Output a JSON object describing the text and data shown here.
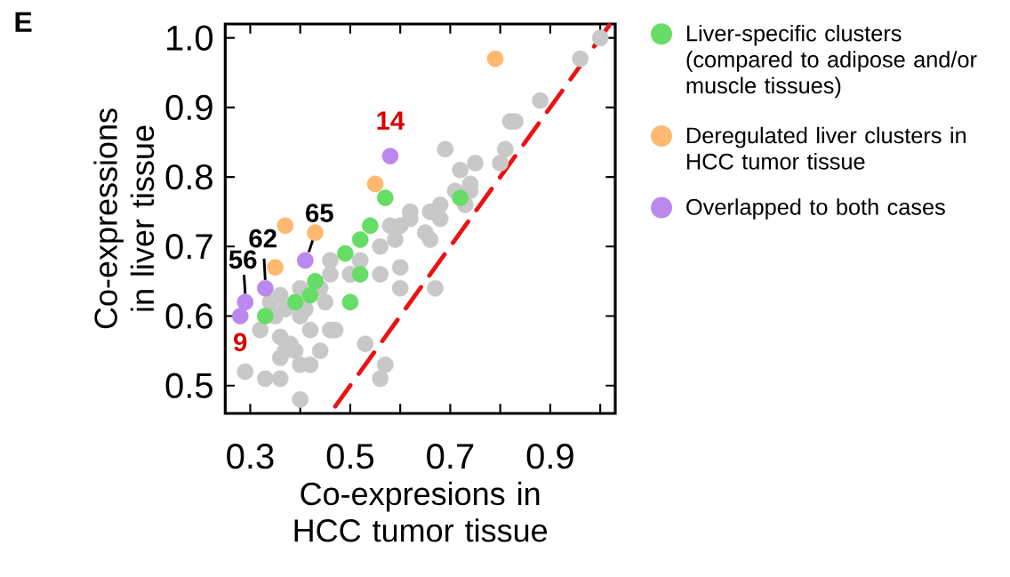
{
  "chart_data": {
    "type": "scatter",
    "xlabel": "Co-expresions in HCC tumor tissue",
    "ylabel": "Co-expressions in liver tissue",
    "xlim": [
      0.25,
      1.03
    ],
    "ylim": [
      0.46,
      1.02
    ],
    "xticks": [
      0.3,
      {
        "value": 0.4,
        "label": null
      },
      0.5,
      {
        "value": 0.6,
        "label": null
      },
      0.7,
      {
        "value": 0.8,
        "label": null
      },
      0.9,
      {
        "value": 1.0,
        "label": null
      }
    ],
    "yticks": [
      0.5,
      0.6,
      0.7,
      0.8,
      0.9,
      {
        "value": 1.0,
        "label": "1.0"
      }
    ],
    "marker": "circle",
    "grid": false,
    "legend": "right",
    "series": [
      {
        "color": "#c8c8c8",
        "x": [
          1.0,
          0.96,
          0.88,
          0.82,
          0.83,
          0.69,
          0.81,
          0.8,
          0.72,
          0.75,
          0.74,
          0.74,
          0.73,
          0.71,
          0.68,
          0.66,
          0.62,
          0.62,
          0.6,
          0.58,
          0.68,
          0.59,
          0.65,
          0.66,
          0.56,
          0.46,
          0.52,
          0.56,
          0.6,
          0.46,
          0.5,
          0.5,
          0.4,
          0.36,
          0.44,
          0.45,
          0.37,
          0.34,
          0.41,
          0.4,
          0.6,
          0.67,
          0.35,
          0.32,
          0.42,
          0.46,
          0.47,
          0.36,
          0.38,
          0.37,
          0.39,
          0.36,
          0.44,
          0.53,
          0.29,
          0.4,
          0.42,
          0.33,
          0.36,
          0.57,
          0.56,
          0.4
        ],
        "values": [
          1.0,
          0.97,
          0.91,
          0.88,
          0.88,
          0.84,
          0.84,
          0.82,
          0.81,
          0.82,
          0.79,
          0.78,
          0.76,
          0.78,
          0.76,
          0.75,
          0.75,
          0.74,
          0.73,
          0.73,
          0.74,
          0.71,
          0.72,
          0.71,
          0.7,
          0.68,
          0.68,
          0.66,
          0.67,
          0.66,
          0.66,
          0.66,
          0.64,
          0.63,
          0.64,
          0.62,
          0.61,
          0.62,
          0.61,
          0.6,
          0.64,
          0.64,
          0.6,
          0.58,
          0.58,
          0.58,
          0.58,
          0.57,
          0.56,
          0.55,
          0.55,
          0.54,
          0.55,
          0.56,
          0.52,
          0.53,
          0.53,
          0.51,
          0.51,
          0.53,
          0.51,
          0.48
        ]
      },
      {
        "name": "Liver-specific clusters (compared to adipose and/or muscle tissues)",
        "color": "#66dd66",
        "x": [
          0.72,
          0.57,
          0.54,
          0.52,
          0.49,
          0.52,
          0.43,
          0.42,
          0.39,
          0.5,
          0.33
        ],
        "values": [
          0.77,
          0.77,
          0.73,
          0.71,
          0.69,
          0.66,
          0.65,
          0.63,
          0.62,
          0.62,
          0.6
        ]
      },
      {
        "name": "Deregulated liver clusters in HCC tumor tissue",
        "color": "#ffb870",
        "x": [
          0.79,
          0.55,
          0.37,
          0.43,
          0.35
        ],
        "values": [
          0.97,
          0.79,
          0.73,
          0.72,
          0.67
        ]
      },
      {
        "name": "Overlapped to both cases",
        "color": "#bb88ee",
        "x": [
          0.58,
          0.41,
          0.33,
          0.29,
          0.28
        ],
        "values": [
          0.83,
          0.68,
          0.64,
          0.62,
          0.6
        ]
      },
      {
        "type": "line",
        "line_style": "dashed",
        "marker": "none",
        "color": "#ee1111",
        "x": [
          0.47,
          1.02
        ],
        "values": [
          0.47,
          1.02
        ]
      }
    ],
    "annotations": [
      "E",
      {
        "text": "14",
        "x": 0.58,
        "y": 0.83
      },
      {
        "text": "65",
        "x": 0.41,
        "y": 0.68
      },
      {
        "text": "62",
        "x": 0.33,
        "y": 0.64
      },
      {
        "text": "56",
        "x": 0.29,
        "y": 0.62
      },
      {
        "text": "9",
        "x": 0.28,
        "y": 0.6
      }
    ]
  }
}
